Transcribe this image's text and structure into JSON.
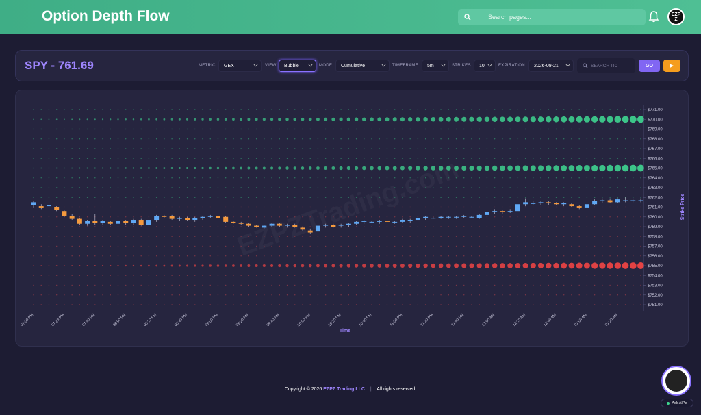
{
  "app": {
    "title": "Option Depth Flow"
  },
  "search": {
    "placeholder": "Search pages..."
  },
  "avatar": {
    "text": "EZPZ"
  },
  "controls": {
    "ticker": "SPY - 761.69",
    "metric_label": "METRIC",
    "metric_value": "GEX",
    "view_label": "VIEW",
    "view_value": "Bubble",
    "mode_label": "MODE",
    "mode_value": "Cumulative",
    "timeframe_label": "TIMEFRAME",
    "timeframe_value": "5m",
    "strikes_label": "STRIKES",
    "strikes_value": "10",
    "expiration_label": "EXPIRATION",
    "expiration_value": "2026-09-21",
    "ticker_search_placeholder": "SEARCH TIC",
    "go_label": "GO",
    "play_icon": "play-icon"
  },
  "chart_data": {
    "type": "bubble",
    "watermark": "EZPZTrading.com",
    "xlabel": "Time",
    "ylabel": "Strike Price",
    "strikes": [
      771,
      770,
      769,
      768,
      767,
      766,
      765,
      764,
      763,
      762,
      761,
      760,
      759,
      758,
      757,
      756,
      755,
      754,
      753,
      752,
      751
    ],
    "ytick_labels": [
      "$771.00",
      "$770.00",
      "$769.00",
      "$768.00",
      "$767.00",
      "$766.00",
      "$765.00",
      "$764.00",
      "$763.00",
      "$762.00",
      "$761.00",
      "$760.00",
      "$759.00",
      "$758.00",
      "$757.00",
      "$756.00",
      "$755.00",
      "$754.00",
      "$753.00",
      "$752.00",
      "$751.00"
    ],
    "xtick_labels": [
      "07:00 PM",
      "07:20 PM",
      "07:40 PM",
      "08:00 PM",
      "08:20 PM",
      "08:40 PM",
      "09:00 PM",
      "09:20 PM",
      "09:40 PM",
      "10:00 PM",
      "10:20 PM",
      "10:40 PM",
      "11:00 PM",
      "11:20 PM",
      "11:40 PM",
      "12:00 AM",
      "12:20 AM",
      "12:40 AM",
      "01:00 AM",
      "01:20 AM"
    ],
    "n_bars": 80,
    "bubble_levels": [
      {
        "strike": 770,
        "sign": "positive",
        "color": "#3ecf8e"
      },
      {
        "strike": 765,
        "sign": "positive",
        "color": "#3ecf8e"
      },
      {
        "strike": 755,
        "sign": "negative",
        "color": "#ef4444"
      }
    ],
    "candles": [
      {
        "o": 761.2,
        "h": 761.6,
        "l": 760.9,
        "c": 761.5
      },
      {
        "o": 761.1,
        "h": 761.3,
        "l": 760.8,
        "c": 760.9
      },
      {
        "o": 761.1,
        "h": 761.4,
        "l": 760.8,
        "c": 761.2
      },
      {
        "o": 761.0,
        "h": 761.1,
        "l": 760.6,
        "c": 760.7
      },
      {
        "o": 760.6,
        "h": 760.7,
        "l": 760.0,
        "c": 760.1
      },
      {
        "o": 760.1,
        "h": 760.3,
        "l": 759.7,
        "c": 759.8
      },
      {
        "o": 759.8,
        "h": 759.9,
        "l": 759.2,
        "c": 759.3
      },
      {
        "o": 759.3,
        "h": 759.7,
        "l": 759.1,
        "c": 759.6
      },
      {
        "o": 759.6,
        "h": 760.3,
        "l": 759.2,
        "c": 759.4
      },
      {
        "o": 759.4,
        "h": 759.7,
        "l": 759.2,
        "c": 759.6
      },
      {
        "o": 759.5,
        "h": 759.6,
        "l": 759.2,
        "c": 759.3
      },
      {
        "o": 759.3,
        "h": 759.7,
        "l": 759.1,
        "c": 759.6
      },
      {
        "o": 759.6,
        "h": 759.7,
        "l": 759.2,
        "c": 759.4
      },
      {
        "o": 759.4,
        "h": 759.8,
        "l": 759.2,
        "c": 759.7
      },
      {
        "o": 759.7,
        "h": 759.8,
        "l": 759.1,
        "c": 759.2
      },
      {
        "o": 759.2,
        "h": 759.8,
        "l": 759.1,
        "c": 759.7
      },
      {
        "o": 759.7,
        "h": 760.2,
        "l": 759.5,
        "c": 760.1
      },
      {
        "o": 760.1,
        "h": 760.2,
        "l": 759.9,
        "c": 760.0
      },
      {
        "o": 760.1,
        "h": 760.2,
        "l": 759.7,
        "c": 759.8
      },
      {
        "o": 759.8,
        "h": 760.0,
        "l": 759.6,
        "c": 759.9
      },
      {
        "o": 759.9,
        "h": 760.0,
        "l": 759.6,
        "c": 759.7
      },
      {
        "o": 759.7,
        "h": 760.0,
        "l": 759.5,
        "c": 759.9
      },
      {
        "o": 759.9,
        "h": 760.1,
        "l": 759.7,
        "c": 760.0
      },
      {
        "o": 760.0,
        "h": 760.2,
        "l": 759.9,
        "c": 760.1
      },
      {
        "o": 760.1,
        "h": 760.2,
        "l": 759.8,
        "c": 759.9
      },
      {
        "o": 760.0,
        "h": 760.1,
        "l": 759.4,
        "c": 759.5
      },
      {
        "o": 759.5,
        "h": 759.6,
        "l": 759.3,
        "c": 759.4
      },
      {
        "o": 759.4,
        "h": 759.5,
        "l": 759.2,
        "c": 759.3
      },
      {
        "o": 759.3,
        "h": 759.4,
        "l": 759.0,
        "c": 759.1
      },
      {
        "o": 759.1,
        "h": 759.2,
        "l": 758.9,
        "c": 759.0
      },
      {
        "o": 758.9,
        "h": 759.2,
        "l": 758.8,
        "c": 759.1
      },
      {
        "o": 759.1,
        "h": 759.4,
        "l": 759.0,
        "c": 759.3
      },
      {
        "o": 759.3,
        "h": 759.4,
        "l": 759.0,
        "c": 759.1
      },
      {
        "o": 759.1,
        "h": 759.3,
        "l": 758.9,
        "c": 759.2
      },
      {
        "o": 759.2,
        "h": 759.3,
        "l": 758.9,
        "c": 759.0
      },
      {
        "o": 758.9,
        "h": 759.0,
        "l": 758.6,
        "c": 758.7
      },
      {
        "o": 758.6,
        "h": 758.8,
        "l": 758.3,
        "c": 758.4
      },
      {
        "o": 758.5,
        "h": 759.2,
        "l": 758.4,
        "c": 759.1
      },
      {
        "o": 759.1,
        "h": 759.3,
        "l": 758.9,
        "c": 759.2
      },
      {
        "o": 759.2,
        "h": 759.3,
        "l": 758.9,
        "c": 759.0
      },
      {
        "o": 759.1,
        "h": 759.3,
        "l": 758.9,
        "c": 759.2
      },
      {
        "o": 759.2,
        "h": 759.4,
        "l": 759.0,
        "c": 759.3
      },
      {
        "o": 759.3,
        "h": 759.6,
        "l": 759.2,
        "c": 759.5
      },
      {
        "o": 759.5,
        "h": 759.7,
        "l": 759.3,
        "c": 759.6
      },
      {
        "o": 759.5,
        "h": 759.6,
        "l": 759.4,
        "c": 759.5
      },
      {
        "o": 759.5,
        "h": 759.7,
        "l": 759.3,
        "c": 759.6
      },
      {
        "o": 759.6,
        "h": 759.7,
        "l": 759.3,
        "c": 759.5
      },
      {
        "o": 759.5,
        "h": 759.6,
        "l": 759.3,
        "c": 759.5
      },
      {
        "o": 759.5,
        "h": 759.8,
        "l": 759.4,
        "c": 759.7
      },
      {
        "o": 759.6,
        "h": 759.8,
        "l": 759.4,
        "c": 759.7
      },
      {
        "o": 759.7,
        "h": 760.0,
        "l": 759.5,
        "c": 759.9
      },
      {
        "o": 759.9,
        "h": 760.1,
        "l": 759.7,
        "c": 760.0
      },
      {
        "o": 759.9,
        "h": 760.0,
        "l": 759.8,
        "c": 759.9
      },
      {
        "o": 759.9,
        "h": 760.1,
        "l": 759.8,
        "c": 760.0
      },
      {
        "o": 760.0,
        "h": 760.1,
        "l": 759.8,
        "c": 760.0
      },
      {
        "o": 760.0,
        "h": 760.1,
        "l": 759.8,
        "c": 760.0
      },
      {
        "o": 760.0,
        "h": 760.2,
        "l": 759.9,
        "c": 760.1
      },
      {
        "o": 760.0,
        "h": 760.1,
        "l": 759.9,
        "c": 760.0
      },
      {
        "o": 759.9,
        "h": 760.3,
        "l": 759.8,
        "c": 760.2
      },
      {
        "o": 760.2,
        "h": 760.7,
        "l": 760.0,
        "c": 760.5
      },
      {
        "o": 760.5,
        "h": 760.8,
        "l": 760.3,
        "c": 760.6
      },
      {
        "o": 760.6,
        "h": 760.7,
        "l": 760.3,
        "c": 760.5
      },
      {
        "o": 760.5,
        "h": 760.8,
        "l": 760.4,
        "c": 760.6
      },
      {
        "o": 760.6,
        "h": 761.5,
        "l": 760.5,
        "c": 761.3
      },
      {
        "o": 761.3,
        "h": 761.9,
        "l": 761.1,
        "c": 761.5
      },
      {
        "o": 761.4,
        "h": 761.6,
        "l": 761.2,
        "c": 761.4
      },
      {
        "o": 761.4,
        "h": 761.6,
        "l": 761.2,
        "c": 761.5
      },
      {
        "o": 761.5,
        "h": 761.6,
        "l": 761.2,
        "c": 761.4
      },
      {
        "o": 761.4,
        "h": 761.5,
        "l": 761.2,
        "c": 761.3
      },
      {
        "o": 761.3,
        "h": 761.5,
        "l": 761.1,
        "c": 761.4
      },
      {
        "o": 761.3,
        "h": 761.4,
        "l": 761.0,
        "c": 761.1
      },
      {
        "o": 761.1,
        "h": 761.2,
        "l": 760.8,
        "c": 760.9
      },
      {
        "o": 760.9,
        "h": 761.4,
        "l": 760.8,
        "c": 761.3
      },
      {
        "o": 761.3,
        "h": 761.8,
        "l": 761.2,
        "c": 761.6
      },
      {
        "o": 761.6,
        "h": 761.9,
        "l": 761.4,
        "c": 761.7
      },
      {
        "o": 761.7,
        "h": 761.9,
        "l": 761.4,
        "c": 761.5
      },
      {
        "o": 761.5,
        "h": 761.9,
        "l": 761.4,
        "c": 761.8
      },
      {
        "o": 761.7,
        "h": 762.0,
        "l": 761.5,
        "c": 761.7
      },
      {
        "o": 761.7,
        "h": 761.9,
        "l": 761.5,
        "c": 761.7
      },
      {
        "o": 761.7,
        "h": 761.9,
        "l": 761.5,
        "c": 761.7
      }
    ],
    "up_color": "#5fa8f5",
    "down_color": "#f59a3e"
  },
  "footer": {
    "copyright": "Copyright © 2026",
    "company": "EZPZ Trading LLC",
    "rights": "All rights reserved."
  },
  "assistant": {
    "label": "Ask AIPe"
  }
}
